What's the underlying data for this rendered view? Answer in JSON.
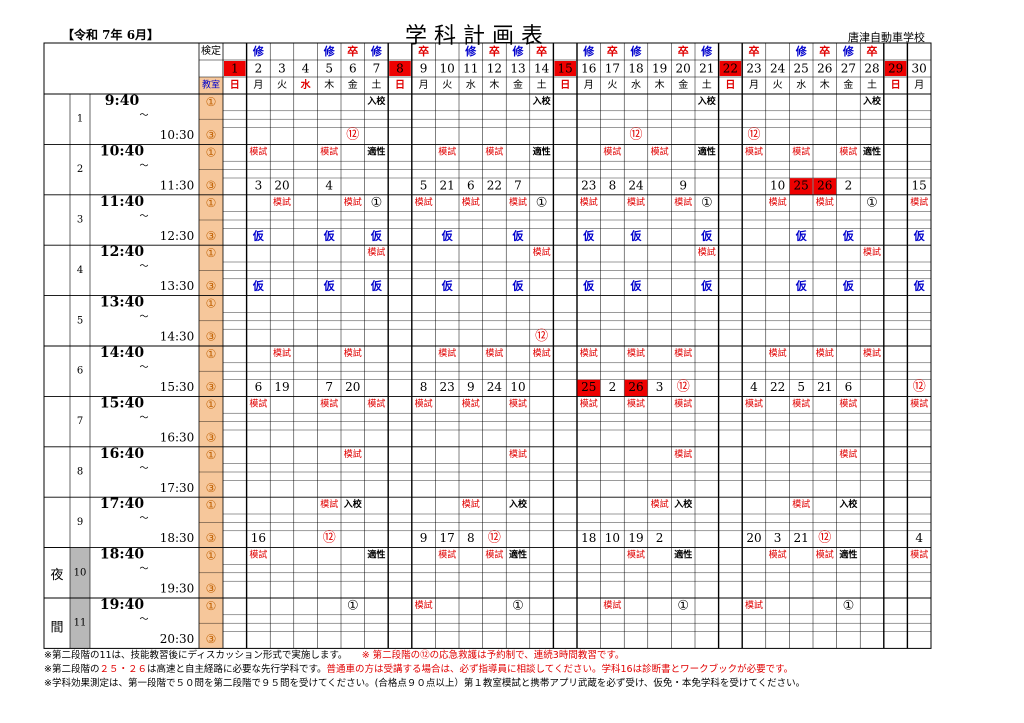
{
  "header": {
    "era": "【令和 7年 6月】",
    "title": "学 科 計 画 表",
    "school": "唐津自動車学校"
  },
  "labels": {
    "kentei": "検定",
    "kyoushitsu": "教室",
    "night": "夜\n間",
    "tilde": "〜"
  },
  "colors": {
    "red": "#e00000",
    "blue": "#0000cc",
    "orange_col": "#f6c79b",
    "gray_col": "#b8b8b8",
    "red_cell": "#ee0000"
  },
  "chart_data": {
    "type": "table",
    "days": [
      {
        "d": "1",
        "w": "日",
        "sun": true,
        "top": ""
      },
      {
        "d": "2",
        "w": "月",
        "top": "修"
      },
      {
        "d": "3",
        "w": "火",
        "top": ""
      },
      {
        "d": "4",
        "w": "水",
        "red": true,
        "top": ""
      },
      {
        "d": "5",
        "w": "木",
        "top": "修"
      },
      {
        "d": "6",
        "w": "金",
        "top": "卒"
      },
      {
        "d": "7",
        "w": "土",
        "top": "修"
      },
      {
        "d": "8",
        "w": "日",
        "sun": true,
        "top": ""
      },
      {
        "d": "9",
        "w": "月",
        "top": "卒"
      },
      {
        "d": "10",
        "w": "火",
        "top": ""
      },
      {
        "d": "11",
        "w": "水",
        "top": "修"
      },
      {
        "d": "12",
        "w": "木",
        "top": "卒"
      },
      {
        "d": "13",
        "w": "金",
        "top": "修"
      },
      {
        "d": "14",
        "w": "土",
        "top": "卒"
      },
      {
        "d": "15",
        "w": "日",
        "sun": true,
        "top": ""
      },
      {
        "d": "16",
        "w": "月",
        "top": "修"
      },
      {
        "d": "17",
        "w": "火",
        "top": "卒"
      },
      {
        "d": "18",
        "w": "水",
        "top": "修"
      },
      {
        "d": "19",
        "w": "木",
        "top": ""
      },
      {
        "d": "20",
        "w": "金",
        "top": "卒"
      },
      {
        "d": "21",
        "w": "土",
        "top": "修"
      },
      {
        "d": "22",
        "w": "日",
        "sun": true,
        "top": ""
      },
      {
        "d": "23",
        "w": "月",
        "top": "卒"
      },
      {
        "d": "24",
        "w": "火",
        "top": ""
      },
      {
        "d": "25",
        "w": "水",
        "top": "修"
      },
      {
        "d": "26",
        "w": "木",
        "top": "卒"
      },
      {
        "d": "27",
        "w": "金",
        "top": "修"
      },
      {
        "d": "28",
        "w": "土",
        "top": "卒"
      },
      {
        "d": "29",
        "w": "日",
        "sun": true,
        "top": ""
      },
      {
        "d": "30",
        "w": "月",
        "top": ""
      }
    ],
    "periods": [
      {
        "no": "1",
        "start": "9:40",
        "end": "10:30"
      },
      {
        "no": "2",
        "start": "10:40",
        "end": "11:30"
      },
      {
        "no": "3",
        "start": "11:40",
        "end": "12:30"
      },
      {
        "no": "4",
        "start": "12:40",
        "end": "13:30"
      },
      {
        "no": "5",
        "start": "13:40",
        "end": "14:30"
      },
      {
        "no": "6",
        "start": "14:40",
        "end": "15:30"
      },
      {
        "no": "7",
        "start": "15:40",
        "end": "16:30"
      },
      {
        "no": "8",
        "start": "16:40",
        "end": "17:30"
      },
      {
        "no": "9",
        "start": "17:40",
        "end": "18:30"
      },
      {
        "no": "10",
        "start": "18:40",
        "end": "19:30",
        "night": true
      },
      {
        "no": "11",
        "start": "19:40",
        "end": "20:30",
        "night": true
      }
    ],
    "rooms": [
      "①",
      "③"
    ],
    "entries": [
      [
        0,
        0,
        7,
        "入校",
        "k"
      ],
      [
        0,
        0,
        14,
        "入校",
        "k"
      ],
      [
        0,
        0,
        21,
        "入校",
        "k"
      ],
      [
        0,
        0,
        28,
        "入校",
        "k"
      ],
      [
        0,
        1,
        6,
        "⑫",
        "rc"
      ],
      [
        0,
        1,
        18,
        "⑫",
        "rc"
      ],
      [
        0,
        1,
        23,
        "⑫",
        "rc"
      ],
      [
        1,
        0,
        2,
        "模試",
        "r"
      ],
      [
        1,
        0,
        5,
        "模試",
        "r"
      ],
      [
        1,
        0,
        7,
        "適性",
        "k"
      ],
      [
        1,
        0,
        10,
        "模試",
        "r"
      ],
      [
        1,
        0,
        12,
        "模試",
        "r"
      ],
      [
        1,
        0,
        14,
        "適性",
        "k"
      ],
      [
        1,
        0,
        17,
        "模試",
        "r"
      ],
      [
        1,
        0,
        19,
        "模試",
        "r"
      ],
      [
        1,
        0,
        21,
        "適性",
        "k"
      ],
      [
        1,
        0,
        23,
        "模試",
        "r"
      ],
      [
        1,
        0,
        25,
        "模試",
        "r"
      ],
      [
        1,
        0,
        27,
        "模試",
        "r"
      ],
      [
        1,
        0,
        28,
        "適性",
        "k"
      ],
      [
        1,
        1,
        2,
        "3",
        "n"
      ],
      [
        1,
        1,
        3,
        "20",
        "n"
      ],
      [
        1,
        1,
        5,
        "4",
        "n"
      ],
      [
        1,
        1,
        9,
        "5",
        "n"
      ],
      [
        1,
        1,
        10,
        "21",
        "n"
      ],
      [
        1,
        1,
        11,
        "6",
        "n"
      ],
      [
        1,
        1,
        12,
        "22",
        "n"
      ],
      [
        1,
        1,
        13,
        "7",
        "n"
      ],
      [
        1,
        1,
        16,
        "23",
        "n"
      ],
      [
        1,
        1,
        17,
        "8",
        "n"
      ],
      [
        1,
        1,
        18,
        "24",
        "n"
      ],
      [
        1,
        1,
        20,
        "9",
        "n"
      ],
      [
        1,
        1,
        25,
        "25",
        "hi"
      ],
      [
        1,
        1,
        24,
        "10",
        "n"
      ],
      [
        1,
        1,
        26,
        "26",
        "hi"
      ],
      [
        1,
        1,
        27,
        "2",
        "n"
      ],
      [
        1,
        1,
        30,
        "15",
        "n"
      ],
      [
        2,
        0,
        3,
        "模試",
        "r"
      ],
      [
        2,
        0,
        6,
        "模試",
        "r"
      ],
      [
        2,
        0,
        7,
        "①",
        "kc"
      ],
      [
        2,
        0,
        9,
        "模試",
        "r"
      ],
      [
        2,
        0,
        11,
        "模試",
        "r"
      ],
      [
        2,
        0,
        13,
        "模試",
        "r"
      ],
      [
        2,
        0,
        14,
        "①",
        "kc"
      ],
      [
        2,
        0,
        16,
        "模試",
        "r"
      ],
      [
        2,
        0,
        18,
        "模試",
        "r"
      ],
      [
        2,
        0,
        20,
        "模試",
        "r"
      ],
      [
        2,
        0,
        21,
        "①",
        "kc"
      ],
      [
        2,
        0,
        24,
        "模試",
        "r"
      ],
      [
        2,
        0,
        26,
        "模試",
        "r"
      ],
      [
        2,
        0,
        28,
        "①",
        "kc"
      ],
      [
        2,
        0,
        30,
        "模試",
        "r"
      ],
      [
        2,
        1,
        2,
        "仮",
        "b"
      ],
      [
        2,
        1,
        5,
        "仮",
        "b"
      ],
      [
        2,
        1,
        7,
        "仮",
        "b"
      ],
      [
        2,
        1,
        10,
        "仮",
        "b"
      ],
      [
        2,
        1,
        13,
        "仮",
        "b"
      ],
      [
        2,
        1,
        16,
        "仮",
        "b"
      ],
      [
        2,
        1,
        18,
        "仮",
        "b"
      ],
      [
        2,
        1,
        21,
        "仮",
        "b"
      ],
      [
        2,
        1,
        25,
        "仮",
        "b"
      ],
      [
        2,
        1,
        27,
        "仮",
        "b"
      ],
      [
        2,
        1,
        30,
        "仮",
        "b"
      ],
      [
        3,
        0,
        7,
        "模試",
        "r"
      ],
      [
        3,
        0,
        14,
        "模試",
        "r"
      ],
      [
        3,
        0,
        21,
        "模試",
        "r"
      ],
      [
        3,
        0,
        28,
        "模試",
        "r"
      ],
      [
        3,
        1,
        2,
        "仮",
        "b"
      ],
      [
        3,
        1,
        5,
        "仮",
        "b"
      ],
      [
        3,
        1,
        7,
        "仮",
        "b"
      ],
      [
        3,
        1,
        10,
        "仮",
        "b"
      ],
      [
        3,
        1,
        13,
        "仮",
        "b"
      ],
      [
        3,
        1,
        16,
        "仮",
        "b"
      ],
      [
        3,
        1,
        18,
        "仮",
        "b"
      ],
      [
        3,
        1,
        21,
        "仮",
        "b"
      ],
      [
        3,
        1,
        25,
        "仮",
        "b"
      ],
      [
        3,
        1,
        27,
        "仮",
        "b"
      ],
      [
        3,
        1,
        30,
        "仮",
        "b"
      ],
      [
        4,
        1,
        14,
        "⑫",
        "rc"
      ],
      [
        5,
        0,
        3,
        "模試",
        "r"
      ],
      [
        5,
        0,
        6,
        "模試",
        "r"
      ],
      [
        5,
        0,
        10,
        "模試",
        "r"
      ],
      [
        5,
        0,
        12,
        "模試",
        "r"
      ],
      [
        5,
        0,
        14,
        "模試",
        "r"
      ],
      [
        5,
        0,
        16,
        "模試",
        "r"
      ],
      [
        5,
        0,
        18,
        "模試",
        "r"
      ],
      [
        5,
        0,
        20,
        "模試",
        "r"
      ],
      [
        5,
        0,
        24,
        "模試",
        "r"
      ],
      [
        5,
        0,
        26,
        "模試",
        "r"
      ],
      [
        5,
        0,
        28,
        "模試",
        "r"
      ],
      [
        5,
        1,
        2,
        "6",
        "n"
      ],
      [
        5,
        1,
        3,
        "19",
        "n"
      ],
      [
        5,
        1,
        5,
        "7",
        "n"
      ],
      [
        5,
        1,
        6,
        "20",
        "n"
      ],
      [
        5,
        1,
        9,
        "8",
        "n"
      ],
      [
        5,
        1,
        10,
        "23",
        "n"
      ],
      [
        5,
        1,
        11,
        "9",
        "n"
      ],
      [
        5,
        1,
        12,
        "24",
        "n"
      ],
      [
        5,
        1,
        13,
        "10",
        "n"
      ],
      [
        5,
        1,
        16,
        "25",
        "hi"
      ],
      [
        5,
        1,
        17,
        "2",
        "n"
      ],
      [
        5,
        1,
        18,
        "26",
        "hi"
      ],
      [
        5,
        1,
        19,
        "3",
        "n"
      ],
      [
        5,
        1,
        20,
        "⑫",
        "rc"
      ],
      [
        5,
        1,
        23,
        "4",
        "n"
      ],
      [
        5,
        1,
        24,
        "22",
        "n"
      ],
      [
        5,
        1,
        25,
        "5",
        "n"
      ],
      [
        5,
        1,
        26,
        "21",
        "n"
      ],
      [
        5,
        1,
        27,
        "6",
        "n"
      ],
      [
        5,
        1,
        30,
        "⑫",
        "rc"
      ],
      [
        6,
        0,
        2,
        "模試",
        "r"
      ],
      [
        6,
        0,
        5,
        "模試",
        "r"
      ],
      [
        6,
        0,
        7,
        "模試",
        "r"
      ],
      [
        6,
        0,
        9,
        "模試",
        "r"
      ],
      [
        6,
        0,
        11,
        "模試",
        "r"
      ],
      [
        6,
        0,
        13,
        "模試",
        "r"
      ],
      [
        6,
        0,
        16,
        "模試",
        "r"
      ],
      [
        6,
        0,
        18,
        "模試",
        "r"
      ],
      [
        6,
        0,
        20,
        "模試",
        "r"
      ],
      [
        6,
        0,
        23,
        "模試",
        "r"
      ],
      [
        6,
        0,
        25,
        "模試",
        "r"
      ],
      [
        6,
        0,
        27,
        "模試",
        "r"
      ],
      [
        6,
        0,
        30,
        "模試",
        "r"
      ],
      [
        7,
        0,
        6,
        "模試",
        "r"
      ],
      [
        7,
        0,
        13,
        "模試",
        "r"
      ],
      [
        7,
        0,
        20,
        "模試",
        "r"
      ],
      [
        7,
        0,
        27,
        "模試",
        "r"
      ],
      [
        8,
        0,
        5,
        "模試",
        "r"
      ],
      [
        8,
        0,
        6,
        "入校",
        "k"
      ],
      [
        8,
        0,
        11,
        "模試",
        "r"
      ],
      [
        8,
        0,
        13,
        "入校",
        "k"
      ],
      [
        8,
        0,
        19,
        "模試",
        "r"
      ],
      [
        8,
        0,
        20,
        "入校",
        "k"
      ],
      [
        8,
        0,
        25,
        "模試",
        "r"
      ],
      [
        8,
        0,
        27,
        "入校",
        "k"
      ],
      [
        8,
        1,
        2,
        "16",
        "n"
      ],
      [
        8,
        1,
        5,
        "⑫",
        "rc"
      ],
      [
        8,
        1,
        9,
        "9",
        "n"
      ],
      [
        8,
        1,
        10,
        "17",
        "n"
      ],
      [
        8,
        1,
        11,
        "8",
        "n"
      ],
      [
        8,
        1,
        12,
        "⑫",
        "rc"
      ],
      [
        8,
        1,
        16,
        "18",
        "n"
      ],
      [
        8,
        1,
        17,
        "10",
        "n"
      ],
      [
        8,
        1,
        18,
        "19",
        "n"
      ],
      [
        8,
        1,
        19,
        "2",
        "n"
      ],
      [
        8,
        1,
        23,
        "20",
        "n"
      ],
      [
        8,
        1,
        24,
        "3",
        "n"
      ],
      [
        8,
        1,
        25,
        "21",
        "n"
      ],
      [
        8,
        1,
        26,
        "⑫",
        "rc"
      ],
      [
        8,
        1,
        30,
        "4",
        "n"
      ],
      [
        9,
        0,
        2,
        "模試",
        "r"
      ],
      [
        9,
        0,
        7,
        "適性",
        "k"
      ],
      [
        9,
        0,
        10,
        "模試",
        "r"
      ],
      [
        9,
        0,
        12,
        "模試",
        "r"
      ],
      [
        9,
        0,
        13,
        "適性",
        "k"
      ],
      [
        9,
        0,
        18,
        "模試",
        "r"
      ],
      [
        9,
        0,
        20,
        "適性",
        "k"
      ],
      [
        9,
        0,
        24,
        "模試",
        "r"
      ],
      [
        9,
        0,
        26,
        "模試",
        "r"
      ],
      [
        9,
        0,
        27,
        "適性",
        "k"
      ],
      [
        9,
        0,
        30,
        "模試",
        "r"
      ],
      [
        10,
        0,
        6,
        "①",
        "kc"
      ],
      [
        10,
        0,
        9,
        "模試",
        "r"
      ],
      [
        10,
        0,
        13,
        "①",
        "kc"
      ],
      [
        10,
        0,
        17,
        "模試",
        "r"
      ],
      [
        10,
        0,
        20,
        "①",
        "kc"
      ],
      [
        10,
        0,
        23,
        "模試",
        "r"
      ],
      [
        10,
        0,
        27,
        "①",
        "kc"
      ]
    ]
  },
  "footnotes": [
    {
      "a": "※第二段階の11は、技能教習後にディスカッション形式で実施します。",
      "b": "　　※ 第二段階の⑫の応急救護は予約制で、連続3時間教習です。"
    },
    {
      "a": "※第二段階の",
      "b": "２５・２６",
      "c": "は高速と自主経路に必要な先行学科です。",
      "d": "普通車の方は受講する場合は、必ず指導員に相談してください。学科16は診断書とワークブックが必要です。"
    },
    {
      "a": "※学科効果測定は、第一段階で５０問を第二段階で９５問を受けてください。(合格点９０点以上）第１教室模試と携帯アプリ武蔵を必ず受け、仮免・本免学科を受けてください。"
    }
  ]
}
